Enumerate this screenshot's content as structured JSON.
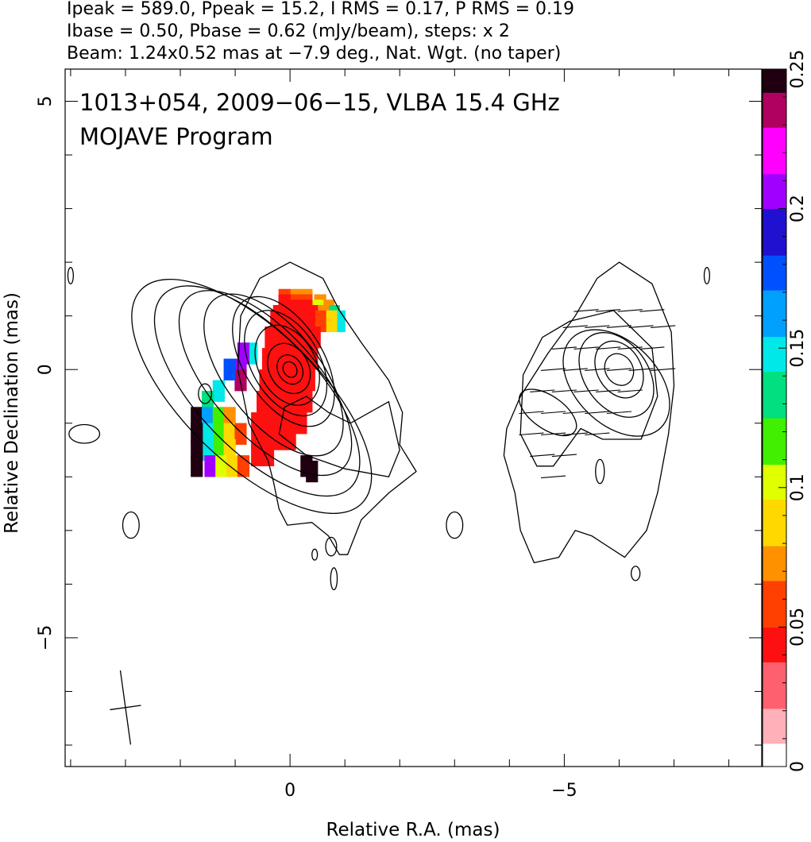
{
  "chart_data": {
    "type": "heatmap",
    "header_lines": [
      "Ipeak = 589.0, Ppeak = 15.2, I RMS = 0.17, P RMS = 0.19",
      "Ibase = 0.50, Pbase = 0.62 (mJy/beam), steps: x 2",
      "Beam: 1.24x0.52 mas at −7.9 deg., Nat. Wgt. (no taper)"
    ],
    "annotations": [
      "1013+054, 2009−06−15, VLBA 15.4 GHz",
      "MOJAVE Program"
    ],
    "xlabel": "Relative R.A. (mas)",
    "ylabel": "Relative Declination (mas)",
    "xlim": [
      4.1,
      -8.6
    ],
    "ylim": [
      -7.4,
      5.6
    ],
    "x_ticks": [
      {
        "value": 0,
        "label": "0"
      },
      {
        "value": -5,
        "label": "−5"
      }
    ],
    "y_ticks": [
      {
        "value": 5,
        "label": "5"
      },
      {
        "value": 0,
        "label": "0"
      },
      {
        "value": -5,
        "label": "−5"
      }
    ],
    "colorbar": {
      "range": [
        0,
        0.25
      ],
      "ticks": [
        {
          "value": 0,
          "label": "0"
        },
        {
          "value": 0.05,
          "label": "0.05"
        },
        {
          "value": 0.1,
          "label": "0.1"
        },
        {
          "value": 0.15,
          "label": "0.15"
        },
        {
          "value": 0.2,
          "label": "0.2"
        },
        {
          "value": 0.25,
          "label": "0.25"
        }
      ],
      "colors": [
        "#ffffff",
        "#ffb0b8",
        "#ff6070",
        "#ff1010",
        "#ff4000",
        "#ff9000",
        "#ffd800",
        "#e0ff00",
        "#40f000",
        "#00e080",
        "#00e8e8",
        "#00a0ff",
        "#0050ff",
        "#2010d0",
        "#a000ff",
        "#ff00ff",
        "#b00060",
        "#200010"
      ]
    },
    "beam": {
      "major_mas": 1.24,
      "minor_mas": 0.52,
      "pa_deg": -7.9,
      "center": [
        3.0,
        -6.3
      ]
    },
    "left_panel": {
      "center": [
        0,
        0
      ],
      "contours": [
        {
          "dx": 0,
          "dy": 0,
          "a": 0.15,
          "b": 0.12,
          "rot": -30
        },
        {
          "dx": 0,
          "dy": 0,
          "a": 0.28,
          "b": 0.22,
          "rot": -30
        },
        {
          "dx": 0.02,
          "dy": 0.02,
          "a": 0.48,
          "b": 0.36,
          "rot": -28
        },
        {
          "dx": 0.05,
          "dy": 0.08,
          "a": 0.78,
          "b": 0.52,
          "rot": -28
        },
        {
          "dx": 0.08,
          "dy": 0.12,
          "a": 1.05,
          "b": 0.62,
          "rot": -30
        },
        {
          "dx": 0.12,
          "dy": 0.15,
          "a": 1.32,
          "b": 0.72,
          "rot": -32
        },
        {
          "dx": 0.3,
          "dy": -0.1,
          "a": 1.75,
          "b": 0.85,
          "rot": -38
        },
        {
          "dx": 0.45,
          "dy": -0.25,
          "a": 2.1,
          "b": 0.95,
          "rot": -42
        },
        {
          "dx": 0.6,
          "dy": -0.4,
          "a": 2.45,
          "b": 1.08,
          "rot": -44
        },
        {
          "dx": 0.7,
          "dy": -0.5,
          "a": 2.8,
          "b": 1.22,
          "rot": -46
        }
      ],
      "outer_contour": [
        [
          -0.6,
          1.7
        ],
        [
          0,
          2.0
        ],
        [
          0.55,
          1.7
        ],
        [
          0.9,
          1.0
        ],
        [
          0.95,
          0
        ],
        [
          0.75,
          -1.0
        ],
        [
          0.4,
          -1.7
        ],
        [
          0.3,
          -2.1
        ],
        [
          0.2,
          -2.6
        ],
        [
          0.05,
          -2.9
        ],
        [
          -0.4,
          -2.85
        ],
        [
          -0.7,
          -3.1
        ],
        [
          -0.9,
          -3.45
        ],
        [
          -1.05,
          -3.45
        ],
        [
          -1.3,
          -2.8
        ],
        [
          -1.8,
          -2.3
        ],
        [
          -2.3,
          -1.9
        ],
        [
          -2.0,
          -1.4
        ],
        [
          -2.05,
          -0.8
        ],
        [
          -1.8,
          -0.2
        ],
        [
          -1.3,
          0.5
        ],
        [
          -0.9,
          1.1
        ],
        [
          -0.6,
          1.7
        ]
      ],
      "inner_contour": [
        [
          -1.8,
          -0.6
        ],
        [
          -1.1,
          -1.0
        ],
        [
          -0.7,
          -0.8
        ],
        [
          -0.3,
          -0.5
        ],
        [
          0.1,
          -0.7
        ],
        [
          0.2,
          -1.2
        ],
        [
          -0.3,
          -1.6
        ],
        [
          -1.0,
          -1.85
        ],
        [
          -1.8,
          -2.0
        ],
        [
          -2.0,
          -1.5
        ],
        [
          -1.8,
          -0.6
        ]
      ],
      "small_contours": [
        [
          3.75,
          -1.2,
          0.28,
          0.17
        ],
        [
          2.9,
          -2.9,
          0.15,
          0.24
        ],
        [
          1.55,
          -0.45,
          0.12,
          0.18
        ],
        [
          4.0,
          1.75,
          0.05,
          0.15
        ],
        [
          -0.75,
          -3.3,
          0.1,
          0.17
        ],
        [
          -0.45,
          -3.45,
          0.05,
          0.1
        ],
        [
          -0.8,
          -3.9,
          0.06,
          0.2
        ]
      ],
      "pol_pixels": [
        [
          -0.3,
          1.3,
          0.08
        ],
        [
          -0.1,
          1.3,
          0.08
        ],
        [
          0.1,
          1.3,
          0.06
        ],
        [
          -0.55,
          1.2,
          0.08
        ],
        [
          -0.3,
          1.2,
          0.06
        ],
        [
          -0.1,
          1.2,
          0.06
        ],
        [
          0.1,
          1.2,
          0.05
        ],
        [
          -0.7,
          1.1,
          0.08
        ],
        [
          -0.5,
          1.1,
          0.1
        ],
        [
          -0.3,
          1.1,
          0.05
        ],
        [
          -0.1,
          1.1,
          0.04
        ],
        [
          0.1,
          1.1,
          0.05
        ],
        [
          -0.8,
          1.0,
          0.13
        ],
        [
          -0.6,
          1.0,
          0.08
        ],
        [
          -0.4,
          1.0,
          0.05
        ],
        [
          -0.2,
          1.0,
          0.04
        ],
        [
          0,
          1.0,
          0.04
        ],
        [
          0.2,
          1.0,
          0.05
        ],
        [
          -0.9,
          0.9,
          0.15
        ],
        [
          -0.75,
          0.9,
          0.09
        ],
        [
          -0.55,
          0.9,
          0.06
        ],
        [
          -0.35,
          0.9,
          0.04
        ],
        [
          -0.15,
          0.9,
          0.04
        ],
        [
          0.05,
          0.9,
          0.04
        ],
        [
          0.25,
          0.9,
          0.05
        ],
        [
          -0.45,
          0.6,
          0.05
        ],
        [
          -0.25,
          0.6,
          0.04
        ],
        [
          -0.05,
          0.6,
          0.04
        ],
        [
          0.15,
          0.6,
          0.04
        ],
        [
          0.35,
          0.6,
          0.05
        ],
        [
          -0.4,
          0.2,
          0.04
        ],
        [
          -0.2,
          0.2,
          0.04
        ],
        [
          0,
          0.2,
          0.04
        ],
        [
          0.2,
          0.2,
          0.04
        ],
        [
          0.4,
          0.2,
          0.05
        ],
        [
          -0.35,
          -0.2,
          0.04
        ],
        [
          -0.15,
          -0.2,
          0.04
        ],
        [
          0.05,
          -0.2,
          0.04
        ],
        [
          0.25,
          -0.2,
          0.04
        ],
        [
          0.45,
          -0.2,
          0.05
        ],
        [
          -0.3,
          -0.6,
          0.04
        ],
        [
          -0.1,
          -0.6,
          0.04
        ],
        [
          0.1,
          -0.6,
          0.04
        ],
        [
          0.3,
          -0.6,
          0.04
        ],
        [
          0.5,
          -0.6,
          0.05
        ],
        [
          -0.2,
          -1.0,
          0.05
        ],
        [
          0,
          -1.0,
          0.04
        ],
        [
          0.2,
          -1.0,
          0.04
        ],
        [
          0.4,
          -1.0,
          0.04
        ],
        [
          0.6,
          -1.0,
          0.05
        ],
        [
          0,
          -1.3,
          0.05
        ],
        [
          0.2,
          -1.3,
          0.04
        ],
        [
          0.4,
          -1.3,
          0.04
        ],
        [
          0.6,
          -1.3,
          0.05
        ],
        [
          0.4,
          -1.6,
          0.05
        ],
        [
          0.6,
          -1.6,
          0.05
        ],
        [
          0.7,
          0.3,
          0.14
        ],
        [
          0.85,
          0.3,
          0.2
        ],
        [
          0.9,
          0.0,
          0.21
        ],
        [
          0.9,
          -0.2,
          0.23
        ],
        [
          1.1,
          0.0,
          0.17
        ],
        [
          1.3,
          -0.4,
          0.15
        ],
        [
          1.5,
          -0.6,
          0.13
        ],
        [
          1.7,
          -0.9,
          0.25
        ],
        [
          1.5,
          -0.9,
          0.16
        ],
        [
          1.3,
          -0.9,
          0.12
        ],
        [
          1.1,
          -0.9,
          0.08
        ],
        [
          1.3,
          -1.2,
          0.12
        ],
        [
          1.5,
          -1.2,
          0.14
        ],
        [
          1.7,
          -1.2,
          0.25
        ],
        [
          1.1,
          -1.2,
          0.09
        ],
        [
          0.9,
          -1.2,
          0.06
        ],
        [
          1.3,
          -1.5,
          0.12
        ],
        [
          1.5,
          -1.5,
          0.14
        ],
        [
          1.7,
          -1.5,
          0.25
        ],
        [
          1.1,
          -1.5,
          0.09
        ],
        [
          1.45,
          -1.8,
          0.2
        ],
        [
          1.25,
          -1.8,
          0.11
        ],
        [
          1.05,
          -1.8,
          0.09
        ],
        [
          0.85,
          -1.8,
          0.06
        ],
        [
          1.7,
          -1.8,
          0.25
        ],
        [
          -0.3,
          -1.8,
          0.25
        ],
        [
          -0.4,
          -1.9,
          0.25
        ]
      ]
    },
    "right_panel": {
      "center": [
        -6,
        0
      ],
      "contours": [
        {
          "dx": 0,
          "dy": 0,
          "a": 0.3,
          "b": 0.25,
          "rot": -30
        },
        {
          "dx": 0,
          "dy": 0,
          "a": 0.55,
          "b": 0.4,
          "rot": -30
        },
        {
          "dx": 0.05,
          "dy": -0.1,
          "a": 0.85,
          "b": 0.58,
          "rot": -35
        },
        {
          "dx": 0.05,
          "dy": -0.25,
          "a": 1.15,
          "b": 0.75,
          "rot": -45
        }
      ],
      "lobe": {
        "dx": 1.3,
        "dy": -0.8,
        "a": 0.6,
        "b": 0.3,
        "rot": -55
      },
      "outer_contour": [
        [
          -5.6,
          1.7
        ],
        [
          -6.0,
          2.0
        ],
        [
          -6.6,
          1.6
        ],
        [
          -6.95,
          0.7
        ],
        [
          -7.0,
          -0.3
        ],
        [
          -6.9,
          -1.2
        ],
        [
          -6.7,
          -2.3
        ],
        [
          -6.5,
          -3.0
        ],
        [
          -6.1,
          -3.5
        ],
        [
          -5.5,
          -3.1
        ],
        [
          -5.2,
          -3.0
        ],
        [
          -4.9,
          -3.5
        ],
        [
          -4.45,
          -3.6
        ],
        [
          -4.2,
          -3.0
        ],
        [
          -4.1,
          -2.3
        ],
        [
          -3.9,
          -1.6
        ],
        [
          -3.95,
          -1.1
        ],
        [
          -4.2,
          -0.5
        ],
        [
          -4.7,
          0.3
        ],
        [
          -5.2,
          1.0
        ],
        [
          -5.6,
          1.7
        ]
      ],
      "mid_contour": [
        [
          -4.25,
          -0.1
        ],
        [
          -4.6,
          0.6
        ],
        [
          -5.1,
          0.9
        ],
        [
          -5.9,
          1.1
        ],
        [
          -6.6,
          0.4
        ],
        [
          -6.7,
          -0.5
        ],
        [
          -6.4,
          -1.3
        ],
        [
          -5.7,
          -1.3
        ],
        [
          -5.3,
          -1.1
        ],
        [
          -4.8,
          -1.8
        ],
        [
          -4.5,
          -1.8
        ],
        [
          -4.2,
          -1.2
        ],
        [
          -4.25,
          -0.1
        ]
      ],
      "small_contours": [
        [
          -3.0,
          -2.9,
          0.15,
          0.24
        ],
        [
          -7.6,
          1.75,
          0.05,
          0.15
        ],
        [
          -6.3,
          -3.8,
          0.08,
          0.13
        ],
        [
          -5.65,
          -1.9,
          0.08,
          0.22
        ]
      ],
      "evpa_vectors": [
        [
          -5.4,
          1.1,
          0,
          0.45
        ],
        [
          -5.8,
          1.1,
          0,
          0.45
        ],
        [
          -6.2,
          1.1,
          0,
          0.45
        ],
        [
          -6.6,
          1.1,
          0,
          0.45
        ],
        [
          -5.2,
          0.8,
          0,
          0.45
        ],
        [
          -5.6,
          0.8,
          0,
          0.45
        ],
        [
          -6.0,
          0.8,
          0,
          0.45
        ],
        [
          -6.4,
          0.8,
          0,
          0.45
        ],
        [
          -6.8,
          0.8,
          0,
          0.45
        ],
        [
          -5.0,
          0.4,
          0,
          0.45
        ],
        [
          -5.4,
          0.4,
          0,
          0.45
        ],
        [
          -5.8,
          0.4,
          0,
          0.45
        ],
        [
          -6.2,
          0.4,
          0,
          0.45
        ],
        [
          -6.6,
          0.4,
          0,
          0.45
        ],
        [
          -4.8,
          0,
          0,
          0.45
        ],
        [
          -5.2,
          0,
          0,
          0.45
        ],
        [
          -5.6,
          0,
          0,
          0.45
        ],
        [
          -6.0,
          0,
          0,
          0.45
        ],
        [
          -6.4,
          0,
          0,
          0.45
        ],
        [
          -6.8,
          0,
          0,
          0.45
        ],
        [
          -4.6,
          -0.4,
          0,
          0.45
        ],
        [
          -5.0,
          -0.4,
          0,
          0.45
        ],
        [
          -5.4,
          -0.4,
          0,
          0.45
        ],
        [
          -5.8,
          -0.4,
          0,
          0.45
        ],
        [
          -6.2,
          -0.4,
          0,
          0.45
        ],
        [
          -4.4,
          -0.8,
          0,
          0.45
        ],
        [
          -4.8,
          -0.8,
          0,
          0.45
        ],
        [
          -5.2,
          -0.8,
          0,
          0.45
        ],
        [
          -5.6,
          -0.8,
          0,
          0.45
        ],
        [
          -6.0,
          -0.8,
          0,
          0.45
        ],
        [
          -4.4,
          -1.2,
          0,
          0.45
        ],
        [
          -4.8,
          -1.2,
          0,
          0.45
        ],
        [
          -5.2,
          -1.2,
          0,
          0.45
        ],
        [
          -5.6,
          -1.2,
          0,
          0.45
        ],
        [
          -4.6,
          -1.6,
          0,
          0.45
        ],
        [
          -5.0,
          -1.6,
          0,
          0.45
        ],
        [
          -4.8,
          -2.0,
          0,
          0.45
        ]
      ]
    }
  }
}
